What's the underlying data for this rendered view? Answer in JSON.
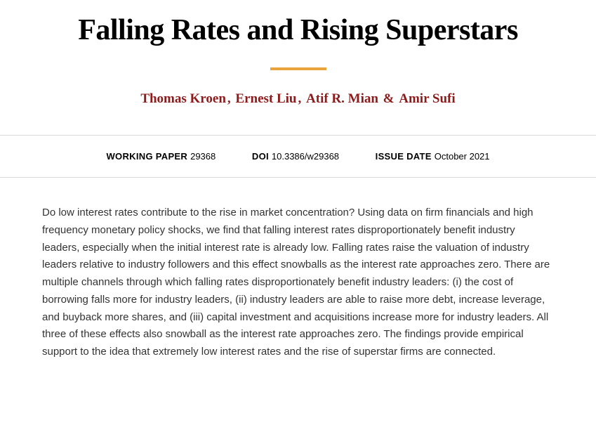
{
  "title": "Falling Rates and Rising Superstars",
  "accent_color": "#e8a33d",
  "author_color": "#8e1b1b",
  "authors": [
    "Thomas Kroen",
    "Ernest Liu",
    "Atif R. Mian",
    "Amir Sufi"
  ],
  "author_separator": ", ",
  "author_last_separator": " & ",
  "meta": {
    "working_paper_label": "WORKING PAPER",
    "working_paper_value": "29368",
    "doi_label": "DOI",
    "doi_value": "10.3386/w29368",
    "issue_date_label": "ISSUE DATE",
    "issue_date_value": "October 2021"
  },
  "abstract": "Do low interest rates contribute to the rise in market concentration? Using data on firm financials and high frequency monetary policy shocks, we find that falling interest rates disproportionately benefit industry leaders, especially when the initial interest rate is already low. Falling rates raise the valuation of industry leaders relative to industry followers and this effect snowballs as the interest rate approaches zero. There are multiple channels through which falling rates disproportionately benefit industry leaders: (i) the cost of borrowing falls more for industry leaders, (ii) industry leaders are able to raise more debt, increase leverage, and buyback more shares, and (iii) capital investment and acquisitions increase more for industry leaders. All three of these effects also snowball as the interest rate approaches zero. The findings provide empirical support to the idea that extremely low interest rates and the rise of superstar firms are connected."
}
